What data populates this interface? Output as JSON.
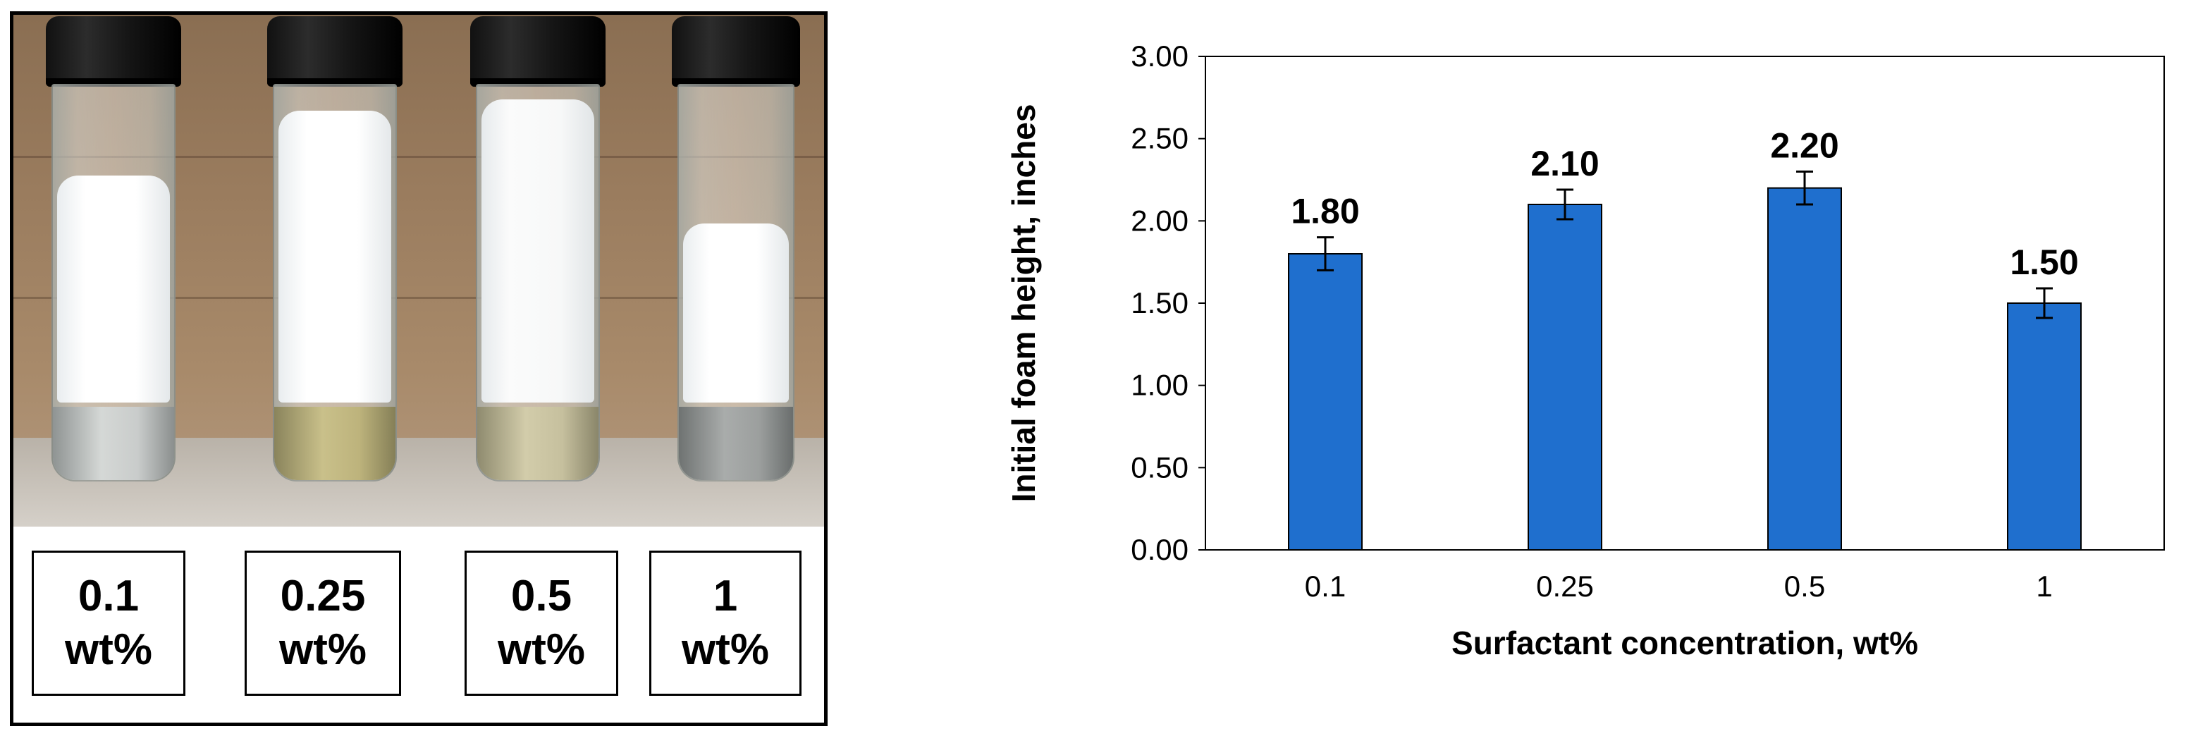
{
  "photo": {
    "labels": [
      {
        "line1": "0.1",
        "line2": "wt%"
      },
      {
        "line1": "0.25",
        "line2": "wt%"
      },
      {
        "line1": "0.5",
        "line2": "wt%"
      },
      {
        "line1": "1",
        "line2": "wt%"
      }
    ],
    "foam_color": "#ffffff",
    "cap_color": "#111111"
  },
  "chart_data": {
    "type": "bar",
    "categories": [
      "0.1",
      "0.25",
      "0.5",
      "1"
    ],
    "values": [
      1.8,
      2.1,
      2.2,
      1.5
    ],
    "errors": [
      0.1,
      0.09,
      0.1,
      0.09
    ],
    "data_labels": [
      "1.80",
      "2.10",
      "2.20",
      "1.50"
    ],
    "xlabel": "Surfactant concentration, wt%",
    "ylabel": "Initial foam height, inches",
    "ylim": [
      0,
      3
    ],
    "yticks": [
      "0.00",
      "0.50",
      "1.00",
      "1.50",
      "2.00",
      "2.50",
      "3.00"
    ],
    "bar_color": "#1f6fce",
    "grid": false,
    "legend": "none"
  }
}
